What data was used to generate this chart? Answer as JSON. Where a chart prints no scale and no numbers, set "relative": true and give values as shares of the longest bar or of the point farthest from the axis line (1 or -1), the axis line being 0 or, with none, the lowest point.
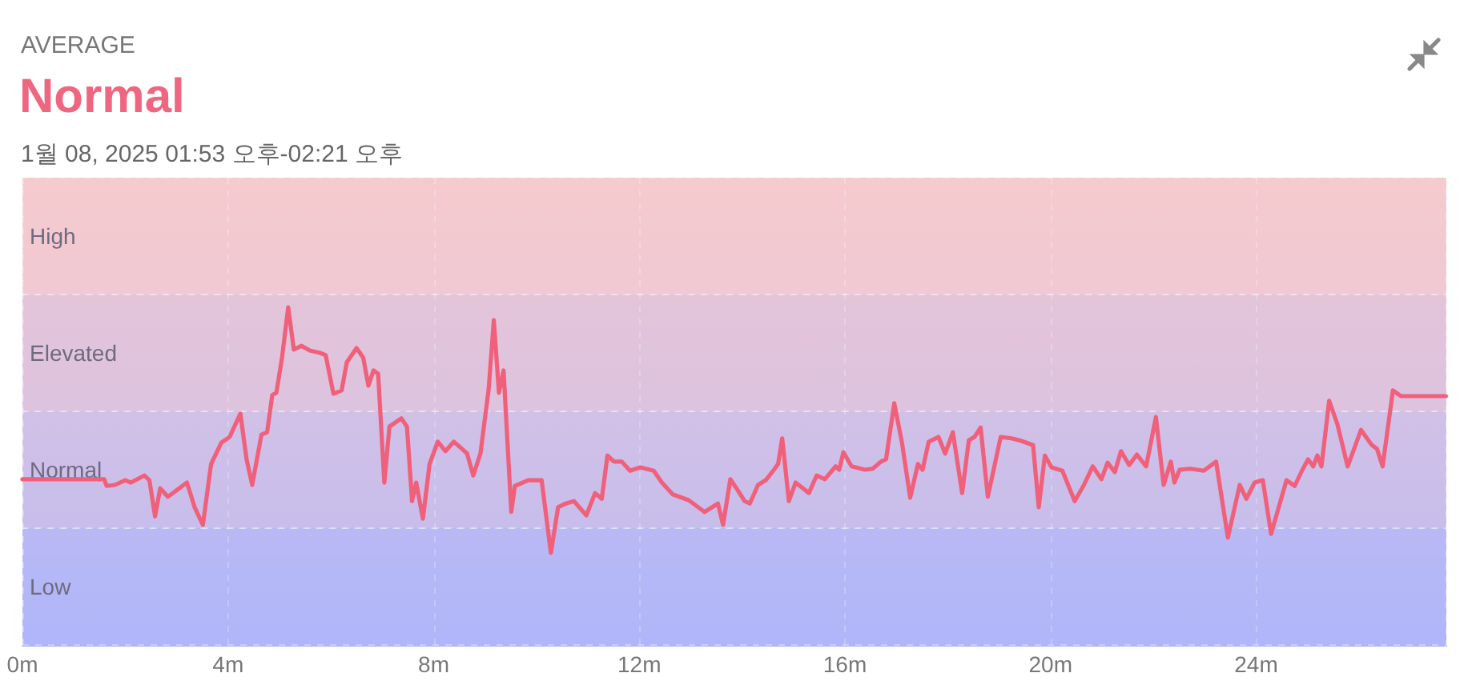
{
  "chart_data": {
    "type": "line",
    "annotations": [
      "AVERAGE"
    ],
    "title": "Normal",
    "subtitle": "1월 08, 2025 01:53 오후-02:21 오후",
    "relative": true,
    "xlim": [
      0,
      27.7
    ],
    "xticks": [
      {
        "value": 0,
        "label": "0m"
      },
      {
        "value": 4,
        "label": "4m"
      },
      {
        "value": 8,
        "label": "8m"
      },
      {
        "value": 12,
        "label": "12m"
      },
      {
        "value": 16,
        "label": "16m"
      },
      {
        "value": 20,
        "label": "20m"
      },
      {
        "value": 24,
        "label": "24m"
      }
    ],
    "bands": [
      {
        "axis": "y",
        "from": 0,
        "to": 0.346,
        "label": "Low",
        "color": "#b3b7f8"
      },
      {
        "axis": "y",
        "from": 0.346,
        "to": 0.692,
        "label": "Normal",
        "color": "#cbbfea"
      },
      {
        "axis": "y",
        "from": 0.692,
        "to": 1.038,
        "label": "Elevated",
        "color": "#e0c3dc"
      },
      {
        "axis": "y",
        "from": 1.038,
        "to": 1.384,
        "label": "High",
        "color": "#f4c9d0"
      }
    ],
    "grid": "x",
    "marker": "none",
    "line_style": "solid",
    "series": [
      {
        "color": "#f0607a",
        "x": [
          0,
          1.59,
          1.64,
          1.8,
          2,
          2.11,
          2.37,
          2.47,
          2.58,
          2.68,
          2.83,
          2.99,
          3.2,
          3.35,
          3.51,
          3.67,
          3.87,
          4.03,
          4.24,
          4.36,
          4.47,
          4.65,
          4.76,
          4.86,
          4.94,
          5.05,
          5.17,
          5.28,
          5.43,
          5.59,
          5.79,
          5.9,
          6.05,
          6.21,
          6.31,
          6.5,
          6.63,
          6.73,
          6.83,
          6.92,
          7.04,
          7.14,
          7.37,
          7.48,
          7.58,
          7.66,
          7.79,
          7.92,
          8.08,
          8.23,
          8.39,
          8.55,
          8.65,
          8.77,
          8.91,
          9.07,
          9.17,
          9.27,
          9.36,
          9.43,
          9.51,
          9.58,
          9.84,
          10.1,
          10.28,
          10.42,
          10.57,
          10.73,
          10.83,
          10.97,
          11.14,
          11.27,
          11.38,
          11.51,
          11.66,
          11.82,
          12.02,
          12.28,
          12.44,
          12.65,
          12.96,
          13.27,
          13.53,
          13.63,
          13.77,
          13.89,
          14.05,
          14.15,
          14.31,
          14.46,
          14.62,
          14.7,
          14.78,
          14.91,
          15.04,
          15.3,
          15.45,
          15.61,
          15.82,
          15.89,
          15.97,
          16.13,
          16.39,
          16.54,
          16.7,
          16.8,
          16.96,
          17.11,
          17.27,
          17.42,
          17.51,
          17.63,
          17.82,
          17.95,
          18.1,
          18.28,
          18.41,
          18.52,
          18.64,
          18.78,
          19.03,
          19.24,
          19.4,
          19.66,
          19.77,
          19.89,
          20.02,
          20.23,
          20.47,
          20.65,
          20.82,
          20.99,
          21.11,
          21.25,
          21.37,
          21.53,
          21.68,
          21.86,
          22.05,
          22.2,
          22.34,
          22.41,
          22.51,
          22.72,
          22.98,
          23.22,
          23.45,
          23.68,
          23.81,
          23.97,
          24.13,
          24.29,
          24.59,
          24.75,
          24.9,
          25.01,
          25.11,
          25.19,
          25.27,
          25.42,
          25.58,
          25.78,
          26.04,
          26.25,
          26.35,
          26.46,
          26.66,
          26.82,
          27.69
        ],
        "values": [
          0.491,
          0.491,
          0.471,
          0.474,
          0.488,
          0.481,
          0.502,
          0.488,
          0.381,
          0.464,
          0.439,
          0.457,
          0.481,
          0.408,
          0.356,
          0.536,
          0.599,
          0.616,
          0.685,
          0.55,
          0.474,
          0.623,
          0.63,
          0.74,
          0.747,
          0.851,
          1,
          0.875,
          0.886,
          0.872,
          0.865,
          0.858,
          0.744,
          0.754,
          0.837,
          0.879,
          0.851,
          0.768,
          0.813,
          0.803,
          0.481,
          0.647,
          0.671,
          0.647,
          0.426,
          0.481,
          0.374,
          0.536,
          0.602,
          0.574,
          0.602,
          0.581,
          0.567,
          0.502,
          0.567,
          0.758,
          0.962,
          0.747,
          0.813,
          0.616,
          0.394,
          0.471,
          0.488,
          0.488,
          0.273,
          0.408,
          0.419,
          0.426,
          0.408,
          0.384,
          0.45,
          0.433,
          0.561,
          0.543,
          0.543,
          0.516,
          0.526,
          0.516,
          0.481,
          0.446,
          0.429,
          0.394,
          0.419,
          0.356,
          0.491,
          0.464,
          0.426,
          0.419,
          0.474,
          0.488,
          0.519,
          0.536,
          0.612,
          0.426,
          0.481,
          0.45,
          0.502,
          0.491,
          0.529,
          0.519,
          0.571,
          0.529,
          0.519,
          0.522,
          0.543,
          0.55,
          0.716,
          0.599,
          0.436,
          0.536,
          0.519,
          0.602,
          0.616,
          0.567,
          0.63,
          0.45,
          0.606,
          0.616,
          0.644,
          0.439,
          0.616,
          0.612,
          0.606,
          0.592,
          0.408,
          0.561,
          0.526,
          0.516,
          0.426,
          0.474,
          0.529,
          0.491,
          0.54,
          0.512,
          0.574,
          0.533,
          0.564,
          0.529,
          0.675,
          0.474,
          0.543,
          0.481,
          0.519,
          0.522,
          0.516,
          0.543,
          0.318,
          0.474,
          0.433,
          0.481,
          0.488,
          0.329,
          0.488,
          0.471,
          0.519,
          0.55,
          0.529,
          0.561,
          0.529,
          0.723,
          0.654,
          0.529,
          0.637,
          0.592,
          0.581,
          0.529,
          0.754,
          0.737,
          0.737
        ]
      }
    ]
  }
}
